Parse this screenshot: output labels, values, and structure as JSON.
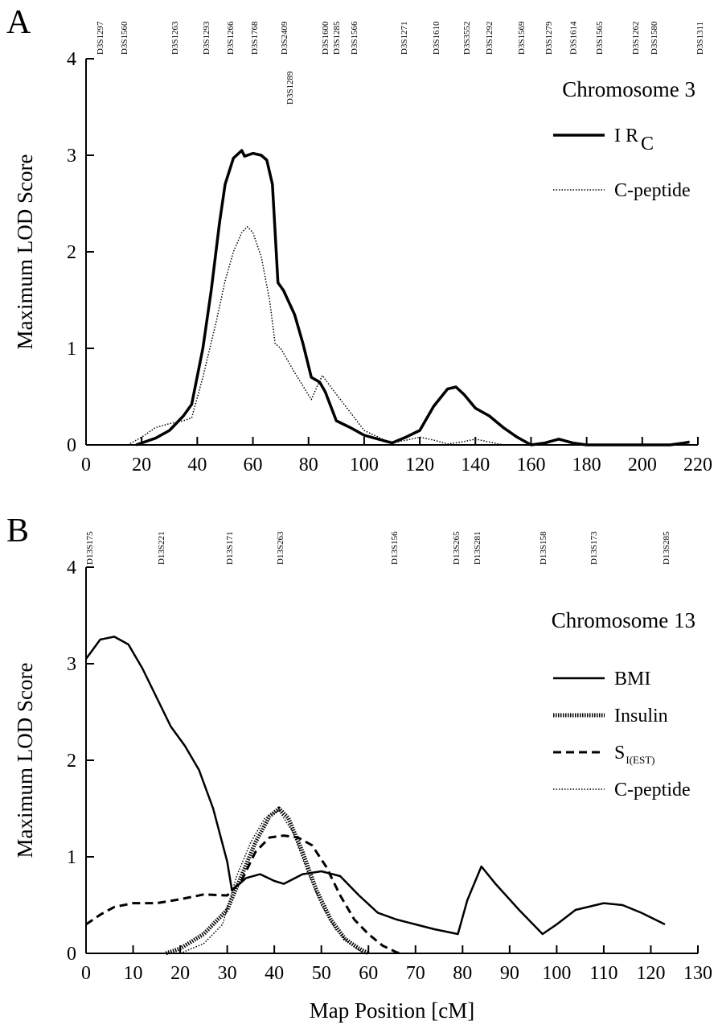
{
  "chart_data": [
    {
      "type": "line",
      "panel_label": "A",
      "title": "Chromosome 3",
      "ylabel": "Maximum LOD Score",
      "xlim": [
        0,
        220
      ],
      "xticks": [
        0,
        20,
        40,
        60,
        80,
        100,
        120,
        140,
        160,
        180,
        200,
        220
      ],
      "ylim": [
        0,
        4
      ],
      "yticks": [
        0,
        1,
        2,
        3,
        4
      ],
      "markers": [
        {
          "name": "D3S1297",
          "x": 4.9
        },
        {
          "name": "D3S1560",
          "x": 13.6
        },
        {
          "name": "D3S1263",
          "x": 31.8
        },
        {
          "name": "D3S1293",
          "x": 43.1
        },
        {
          "name": "D3S1266",
          "x": 51.7
        },
        {
          "name": "D3S1768",
          "x": 60.4
        },
        {
          "name": "D3S2409",
          "x": 71.1
        },
        {
          "name": "D3S1289",
          "x": 73.1
        },
        {
          "name": "D3S1600",
          "x": 85.9
        },
        {
          "name": "D3S1285",
          "x": 89.9
        },
        {
          "name": "D3S1566",
          "x": 96.3
        },
        {
          "name": "D3S1271",
          "x": 114.2
        },
        {
          "name": "D3S1610",
          "x": 125.8
        },
        {
          "name": "D3S3552",
          "x": 136.8
        },
        {
          "name": "D3S1292",
          "x": 144.9
        },
        {
          "name": "D3S1569",
          "x": 156.4
        },
        {
          "name": "D3S1279",
          "x": 166.3
        },
        {
          "name": "D3S1614",
          "x": 175.0
        },
        {
          "name": "D3S1565",
          "x": 184.5
        },
        {
          "name": "D3S1262",
          "x": 197.5
        },
        {
          "name": "D3S1580",
          "x": 204.1
        },
        {
          "name": "D3S1311",
          "x": 220.6
        }
      ],
      "series": [
        {
          "name": "I R",
          "subscript": "C",
          "color": "#000000",
          "style": "solid-heavy",
          "x": [
            18,
            25,
            30,
            35,
            38,
            42,
            45,
            48,
            50,
            53,
            56,
            57,
            60,
            63,
            65,
            67,
            68,
            69,
            71,
            75,
            78,
            81,
            84,
            86,
            90,
            95,
            100,
            110,
            115,
            120,
            125,
            130,
            133,
            136,
            140,
            145,
            150,
            155,
            160,
            165,
            170,
            175,
            180,
            200,
            210,
            215,
            217
          ],
          "values": [
            0,
            0.07,
            0.15,
            0.3,
            0.42,
            1.0,
            1.6,
            2.3,
            2.7,
            2.97,
            3.05,
            2.99,
            3.02,
            3.0,
            2.95,
            2.7,
            2.2,
            1.68,
            1.6,
            1.35,
            1.05,
            0.7,
            0.65,
            0.55,
            0.25,
            0.18,
            0.1,
            0.02,
            0.08,
            0.15,
            0.4,
            0.58,
            0.6,
            0.52,
            0.38,
            0.3,
            0.18,
            0.08,
            0,
            0.02,
            0.06,
            0.02,
            0,
            0,
            0,
            0.02,
            0.03
          ]
        },
        {
          "name": "C-peptide",
          "color": "#000000",
          "style": "dotted",
          "x": [
            15,
            20,
            25,
            30,
            35,
            38,
            42,
            47,
            50,
            53,
            56,
            58,
            60,
            63,
            66,
            68,
            70,
            75,
            81,
            83,
            85,
            88,
            92,
            96,
            100,
            108,
            112,
            120,
            125,
            130,
            135,
            140,
            145,
            150
          ],
          "values": [
            0,
            0.08,
            0.18,
            0.22,
            0.25,
            0.28,
            0.7,
            1.3,
            1.7,
            2.0,
            2.2,
            2.26,
            2.2,
            1.95,
            1.5,
            1.05,
            1.0,
            0.75,
            0.47,
            0.6,
            0.72,
            0.6,
            0.45,
            0.3,
            0.15,
            0.04,
            0.03,
            0.08,
            0.05,
            0.01,
            0.03,
            0.06,
            0.03,
            0
          ]
        }
      ]
    },
    {
      "type": "line",
      "panel_label": "B",
      "title": "Chromosome 13",
      "ylabel": "Maximum LOD Score",
      "xlabel": "Map Position [cM]",
      "xlim": [
        0,
        130
      ],
      "xticks": [
        0,
        10,
        20,
        30,
        40,
        50,
        60,
        70,
        80,
        90,
        100,
        110,
        120,
        130
      ],
      "ylim": [
        0,
        4
      ],
      "yticks": [
        0,
        1,
        2,
        3,
        4
      ],
      "markers": [
        {
          "name": "D13S175",
          "x": 0.7
        },
        {
          "name": "D13S221",
          "x": 15.9
        },
        {
          "name": "D13S171",
          "x": 30.4
        },
        {
          "name": "D13S263",
          "x": 41.2
        },
        {
          "name": "D13S156",
          "x": 65.4
        },
        {
          "name": "D13S265",
          "x": 78.6
        },
        {
          "name": "D13S281",
          "x": 83.0
        },
        {
          "name": "D13S158",
          "x": 97.0
        },
        {
          "name": "D13S173",
          "x": 107.8
        },
        {
          "name": "D13S285",
          "x": 123.2
        }
      ],
      "series": [
        {
          "name": "BMI",
          "color": "#000000",
          "style": "solid",
          "x": [
            0,
            3,
            6,
            9,
            12,
            15,
            18,
            21,
            24,
            27,
            30,
            31,
            34,
            37,
            40,
            42,
            46,
            50,
            54,
            58,
            62,
            66,
            70,
            74,
            79,
            81,
            84,
            87,
            92,
            97,
            100,
            104,
            110,
            114,
            118,
            123
          ],
          "values": [
            3.05,
            3.25,
            3.28,
            3.2,
            2.95,
            2.65,
            2.35,
            2.15,
            1.9,
            1.5,
            0.95,
            0.65,
            0.78,
            0.82,
            0.75,
            0.72,
            0.82,
            0.85,
            0.8,
            0.6,
            0.42,
            0.35,
            0.3,
            0.25,
            0.2,
            0.55,
            0.9,
            0.72,
            0.45,
            0.2,
            0.3,
            0.45,
            0.52,
            0.5,
            0.42,
            0.3
          ]
        },
        {
          "name": "Insulin",
          "color": "#000000",
          "style": "heavy-dotted",
          "x": [
            17,
            20,
            25,
            30,
            33,
            36,
            39,
            41,
            43,
            46,
            49,
            52,
            55,
            58,
            60
          ],
          "values": [
            0,
            0.05,
            0.2,
            0.45,
            0.8,
            1.15,
            1.42,
            1.5,
            1.4,
            1.05,
            0.65,
            0.35,
            0.15,
            0.05,
            0
          ]
        },
        {
          "name": "S",
          "subscript": "I(EST)",
          "color": "#000000",
          "style": "dashed",
          "x": [
            0,
            3,
            6,
            10,
            15,
            20,
            25,
            30,
            33,
            36,
            39,
            42,
            45,
            48,
            51,
            54,
            57,
            60,
            63,
            66,
            67
          ],
          "values": [
            0.3,
            0.4,
            0.48,
            0.52,
            0.52,
            0.56,
            0.61,
            0.6,
            0.75,
            1.05,
            1.2,
            1.22,
            1.2,
            1.12,
            0.9,
            0.6,
            0.35,
            0.2,
            0.08,
            0.01,
            0
          ]
        },
        {
          "name": "C-peptide",
          "color": "#000000",
          "style": "dotted",
          "x": [
            20,
            25,
            29,
            32,
            35,
            38,
            41,
            44,
            47,
            50,
            53,
            56,
            59
          ],
          "values": [
            0,
            0.1,
            0.3,
            0.8,
            1.15,
            1.4,
            1.48,
            1.25,
            0.85,
            0.5,
            0.25,
            0.1,
            0
          ]
        }
      ]
    }
  ]
}
